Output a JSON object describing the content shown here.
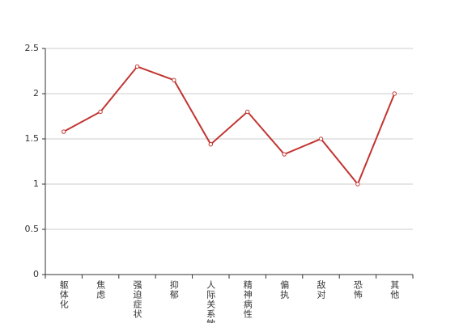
{
  "chart_data": {
    "type": "line",
    "categories": [
      "躯体化",
      "焦虑",
      "强迫症状",
      "抑郁",
      "人际关系敏感",
      "精神病性",
      "偏执",
      "敌对",
      "恐怖",
      "其他"
    ],
    "series": [
      {
        "color": "#c23531",
        "values": [
          1.58,
          1.8,
          2.3,
          2.15,
          1.44,
          1.8,
          1.33,
          1.5,
          1.0,
          2.0
        ]
      }
    ],
    "ylim": [
      0,
      2.5
    ],
    "yticks": [
      0,
      0.5,
      1,
      1.5,
      2,
      2.5
    ],
    "grid": true
  }
}
